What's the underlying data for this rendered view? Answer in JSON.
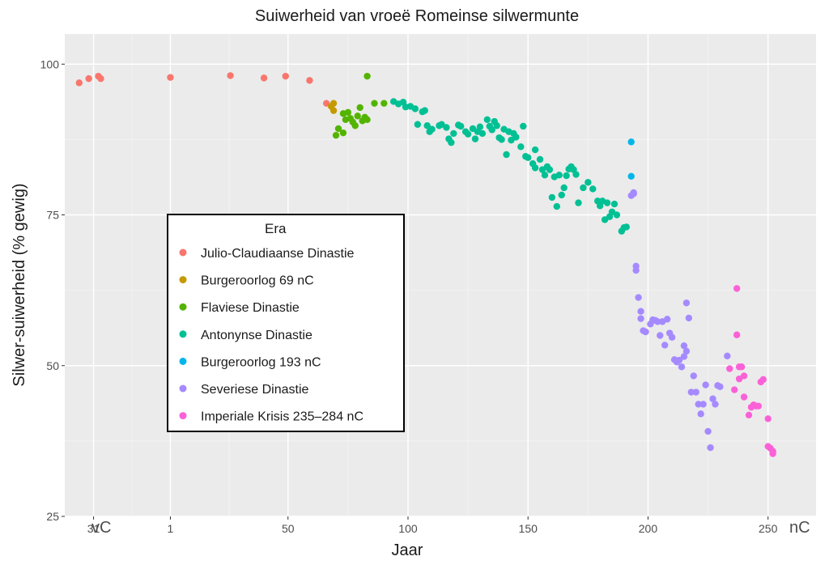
{
  "chart_data": {
    "type": "scatter",
    "title": "Suiwerheid van vroeë Romeinse silwermunte",
    "xlabel": "Jaar",
    "ylabel": "Silwer-suiwerheid (% gewig)",
    "xlim": [
      -43,
      270
    ],
    "ylim": [
      25,
      105
    ],
    "x_ticks": [
      {
        "value": -31,
        "label": "31"
      },
      {
        "value": 1,
        "label": "1"
      },
      {
        "value": 50,
        "label": "50"
      },
      {
        "value": 100,
        "label": "100"
      },
      {
        "value": 150,
        "label": "150"
      },
      {
        "value": 200,
        "label": "200"
      },
      {
        "value": 250,
        "label": "250"
      }
    ],
    "y_ticks": [
      {
        "value": 25,
        "label": "25"
      },
      {
        "value": 50,
        "label": "50"
      },
      {
        "value": 75,
        "label": "75"
      },
      {
        "value": 100,
        "label": "100"
      }
    ],
    "era_labels": {
      "bc": "vC",
      "ad": "nC"
    },
    "grid": true,
    "legend": {
      "title": "Era",
      "position": "left-center"
    },
    "series": [
      {
        "name": "Julio-Claudiaanse Dinastie",
        "color": "#F8766D",
        "points": [
          [
            -37,
            96.9
          ],
          [
            -33,
            97.6
          ],
          [
            -29,
            98.0
          ],
          [
            -28,
            97.6
          ],
          [
            1,
            97.8
          ],
          [
            26,
            98.1
          ],
          [
            40,
            97.7
          ],
          [
            49,
            98.0
          ],
          [
            59,
            97.3
          ],
          [
            66,
            93.5
          ]
        ]
      },
      {
        "name": "Burgeroorlog 69 nC",
        "color": "#C49A00",
        "points": [
          [
            68,
            93.0
          ],
          [
            69,
            93.5
          ],
          [
            69,
            92.3
          ]
        ]
      },
      {
        "name": "Flaviese Dinastie",
        "color": "#53B400",
        "points": [
          [
            70,
            88.2
          ],
          [
            71,
            89.3
          ],
          [
            73,
            91.8
          ],
          [
            73,
            88.6
          ],
          [
            74,
            90.8
          ],
          [
            75,
            92.0
          ],
          [
            76,
            91.0
          ],
          [
            77,
            90.4
          ],
          [
            78,
            89.8
          ],
          [
            79,
            91.4
          ],
          [
            80,
            92.8
          ],
          [
            81,
            90.6
          ],
          [
            82,
            91.2
          ],
          [
            83,
            90.8
          ],
          [
            83,
            98.0
          ],
          [
            86,
            93.5
          ],
          [
            90,
            93.5
          ]
        ]
      },
      {
        "name": "Antonynse Dinastie",
        "color": "#00C094",
        "points": [
          [
            94,
            93.8
          ],
          [
            96,
            93.4
          ],
          [
            98,
            93.7
          ],
          [
            99,
            92.9
          ],
          [
            101,
            93.0
          ],
          [
            103,
            92.6
          ],
          [
            104,
            90.0
          ],
          [
            106,
            92.1
          ],
          [
            107,
            92.3
          ],
          [
            108,
            89.8
          ],
          [
            109,
            88.8
          ],
          [
            110,
            89.2
          ],
          [
            113,
            89.8
          ],
          [
            114,
            90.0
          ],
          [
            116,
            89.5
          ],
          [
            117,
            87.6
          ],
          [
            118,
            87.0
          ],
          [
            119,
            88.5
          ],
          [
            121,
            89.9
          ],
          [
            122,
            89.7
          ],
          [
            124,
            88.8
          ],
          [
            125,
            88.4
          ],
          [
            127,
            89.3
          ],
          [
            128,
            87.6
          ],
          [
            129,
            88.8
          ],
          [
            130,
            89.6
          ],
          [
            131,
            88.5
          ],
          [
            133,
            90.8
          ],
          [
            134,
            89.7
          ],
          [
            135,
            89.1
          ],
          [
            136,
            90.5
          ],
          [
            137,
            89.8
          ],
          [
            138,
            87.8
          ],
          [
            139,
            87.5
          ],
          [
            140,
            89.2
          ],
          [
            141,
            85.0
          ],
          [
            142,
            88.8
          ],
          [
            143,
            87.4
          ],
          [
            144,
            88.5
          ],
          [
            145,
            87.9
          ],
          [
            147,
            86.3
          ],
          [
            148,
            89.7
          ],
          [
            149,
            84.7
          ],
          [
            150,
            84.5
          ],
          [
            152,
            83.5
          ],
          [
            153,
            82.8
          ],
          [
            153,
            85.8
          ],
          [
            155,
            84.2
          ],
          [
            156,
            82.5
          ],
          [
            157,
            81.6
          ],
          [
            158,
            83.0
          ],
          [
            159,
            82.5
          ],
          [
            160,
            77.9
          ],
          [
            161,
            81.3
          ],
          [
            162,
            76.4
          ],
          [
            163,
            81.6
          ],
          [
            164,
            78.3
          ],
          [
            165,
            79.5
          ],
          [
            166,
            81.5
          ],
          [
            167,
            82.6
          ],
          [
            168,
            83.0
          ],
          [
            169,
            82.5
          ],
          [
            170,
            81.7
          ],
          [
            171,
            77.0
          ],
          [
            173,
            79.5
          ],
          [
            175,
            80.4
          ],
          [
            177,
            79.3
          ],
          [
            179,
            77.3
          ],
          [
            180,
            76.5
          ],
          [
            181,
            77.3
          ],
          [
            182,
            74.2
          ],
          [
            183,
            77.0
          ],
          [
            184,
            74.7
          ],
          [
            185,
            75.5
          ],
          [
            186,
            76.8
          ],
          [
            187,
            75.0
          ],
          [
            189,
            72.3
          ],
          [
            190,
            72.9
          ],
          [
            191,
            73.0
          ]
        ]
      },
      {
        "name": "Burgeroorlog 193 nC",
        "color": "#00B6EB",
        "points": [
          [
            193,
            87.1
          ],
          [
            193,
            81.4
          ]
        ]
      },
      {
        "name": "Severiese Dinastie",
        "color": "#A58AFF",
        "points": [
          [
            193,
            78.2
          ],
          [
            194,
            78.7
          ],
          [
            194,
            78.5
          ],
          [
            195,
            66.5
          ],
          [
            195,
            65.8
          ],
          [
            196,
            61.3
          ],
          [
            197,
            59.0
          ],
          [
            197,
            57.8
          ],
          [
            198,
            55.8
          ],
          [
            199,
            55.6
          ],
          [
            201,
            56.9
          ],
          [
            202,
            57.6
          ],
          [
            203,
            57.5
          ],
          [
            204,
            57.3
          ],
          [
            205,
            55.0
          ],
          [
            206,
            57.3
          ],
          [
            207,
            53.4
          ],
          [
            208,
            57.7
          ],
          [
            209,
            55.4
          ],
          [
            210,
            54.7
          ],
          [
            211,
            51.0
          ],
          [
            212,
            50.6
          ],
          [
            213,
            50.9
          ],
          [
            214,
            49.8
          ],
          [
            215,
            51.5
          ],
          [
            215,
            53.3
          ],
          [
            216,
            52.4
          ],
          [
            216,
            60.4
          ],
          [
            217,
            57.9
          ],
          [
            218,
            45.6
          ],
          [
            219,
            48.3
          ],
          [
            220,
            45.6
          ],
          [
            221,
            43.6
          ],
          [
            222,
            42.0
          ],
          [
            223,
            43.6
          ],
          [
            224,
            46.8
          ],
          [
            225,
            39.1
          ],
          [
            226,
            36.4
          ],
          [
            227,
            44.5
          ],
          [
            228,
            43.6
          ],
          [
            229,
            46.7
          ],
          [
            230,
            46.5
          ],
          [
            233,
            51.6
          ]
        ]
      },
      {
        "name": "Imperiale Krisis 235–284 nC",
        "color": "#FB61D7",
        "points": [
          [
            234,
            49.5
          ],
          [
            236,
            46.0
          ],
          [
            237,
            62.8
          ],
          [
            237,
            55.1
          ],
          [
            238,
            47.8
          ],
          [
            238,
            49.8
          ],
          [
            239,
            49.8
          ],
          [
            240,
            48.3
          ],
          [
            240,
            44.8
          ],
          [
            242,
            41.8
          ],
          [
            243,
            43.1
          ],
          [
            244,
            43.5
          ],
          [
            245,
            43.3
          ],
          [
            246,
            43.3
          ],
          [
            247,
            47.3
          ],
          [
            248,
            47.7
          ],
          [
            250,
            41.2
          ],
          [
            250,
            36.6
          ],
          [
            251,
            36.3
          ],
          [
            252,
            35.8
          ],
          [
            252,
            35.4
          ]
        ]
      }
    ]
  }
}
